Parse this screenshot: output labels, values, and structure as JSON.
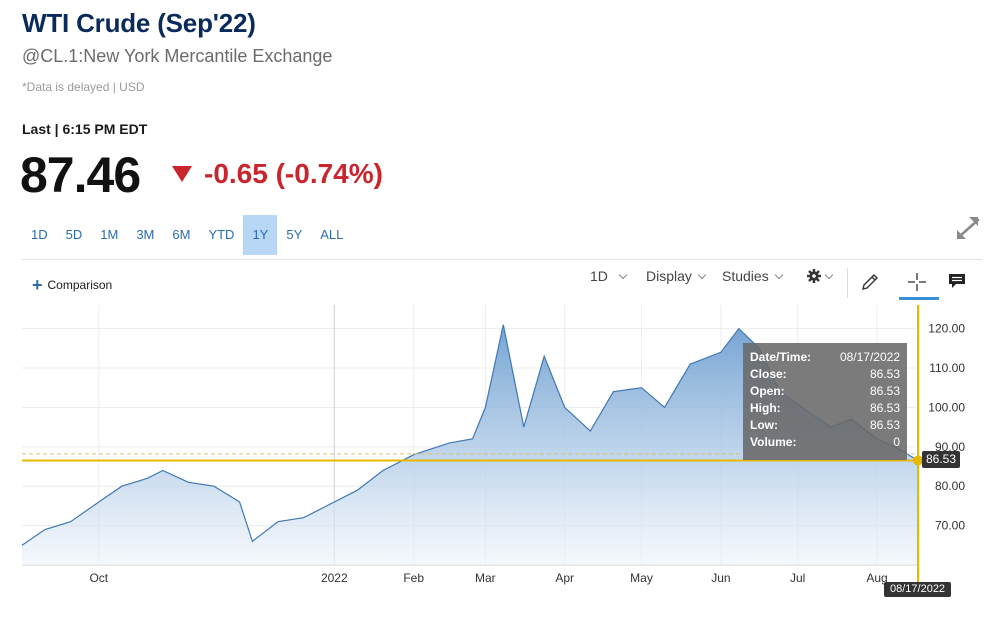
{
  "header": {
    "title": "WTI Crude (Sep'22)",
    "subtitle": "@CL.1:New York Mercantile Exchange",
    "delayed_note": "*Data is delayed | USD",
    "last_label": "Last | 6:15 PM EDT",
    "price": "87.46",
    "change": "-0.65 (-0.74%)"
  },
  "ranges": [
    "1D",
    "5D",
    "1M",
    "3M",
    "6M",
    "YTD",
    "1Y",
    "5Y",
    "ALL"
  ],
  "active_range": "1Y",
  "toolbar": {
    "comparison": "Comparison",
    "interval": "1D",
    "display": "Display",
    "studies": "Studies"
  },
  "icons": [
    "expand-icon",
    "plus-icon",
    "gear-icon",
    "pencil-icon",
    "crosshair-icon",
    "comment-icon"
  ],
  "colors": {
    "accent": "#2a6bb0",
    "down": "#c9252c",
    "title": "#0b2a5c",
    "crosshair": "#e6b800"
  },
  "tooltip": {
    "rows": [
      {
        "label": "Date/Time:",
        "value": "08/17/2022"
      },
      {
        "label": "Close:",
        "value": "86.53"
      },
      {
        "label": "Open:",
        "value": "86.53"
      },
      {
        "label": "High:",
        "value": "86.53"
      },
      {
        "label": "Low:",
        "value": "86.53"
      },
      {
        "label": "Volume:",
        "value": "0"
      }
    ]
  },
  "crosshair": {
    "price_label": "86.53",
    "date_label": "08/17/2022"
  },
  "chart_data": {
    "type": "area",
    "y_ticks": [
      "120.00",
      "110.00",
      "100.00",
      "90.00",
      "80.00",
      "70.00"
    ],
    "x_ticks": [
      "Oct",
      "2022",
      "Feb",
      "Mar",
      "Apr",
      "May",
      "Jun",
      "Jul",
      "Aug"
    ],
    "ylim": [
      60,
      126
    ],
    "x": [
      "2021-09-01",
      "2021-09-10",
      "2021-09-20",
      "2021-10-01",
      "2021-10-10",
      "2021-10-20",
      "2021-10-26",
      "2021-11-05",
      "2021-11-15",
      "2021-11-25",
      "2021-11-30",
      "2021-12-10",
      "2021-12-20",
      "2022-01-01",
      "2022-01-10",
      "2022-01-20",
      "2022-02-01",
      "2022-02-15",
      "2022-02-24",
      "2022-03-01",
      "2022-03-08",
      "2022-03-16",
      "2022-03-24",
      "2022-04-01",
      "2022-04-11",
      "2022-04-20",
      "2022-05-01",
      "2022-05-10",
      "2022-05-20",
      "2022-06-01",
      "2022-06-08",
      "2022-06-16",
      "2022-06-24",
      "2022-07-05",
      "2022-07-14",
      "2022-07-22",
      "2022-08-01",
      "2022-08-08",
      "2022-08-17"
    ],
    "series": [
      {
        "values": [
          65,
          69,
          71,
          76,
          80,
          82,
          84,
          81,
          80,
          76,
          66,
          71,
          72,
          76,
          79,
          84,
          88,
          91,
          92,
          100,
          121,
          95,
          113,
          100,
          94,
          104,
          105,
          100,
          111,
          114,
          120,
          115,
          104,
          99,
          95,
          97,
          92,
          90,
          86.53
        ]
      }
    ],
    "last_close": 86.53,
    "grid": true
  }
}
